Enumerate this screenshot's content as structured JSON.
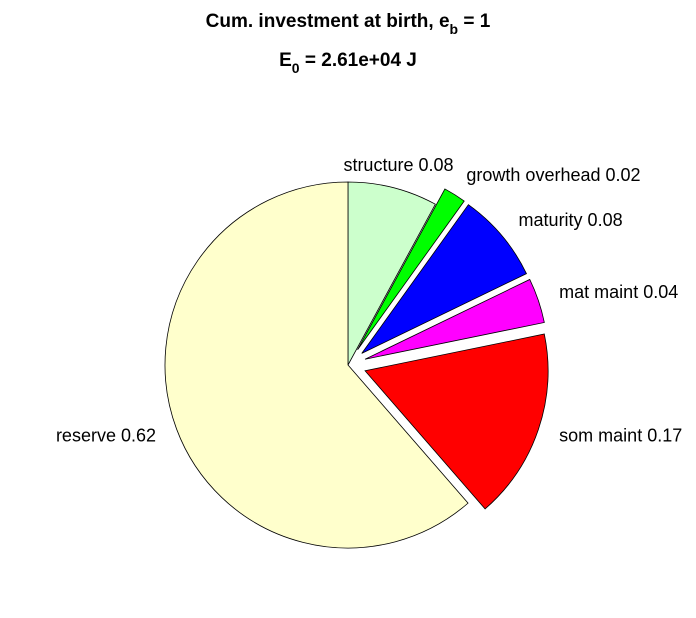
{
  "chart_data": {
    "type": "pie",
    "title": {
      "line1": [
        "Cum. investment at birth, e",
        "b",
        " = 1"
      ],
      "line2": [
        "E",
        "0",
        " = 2.61e+04 J"
      ]
    },
    "categories": [
      "structure 0.08",
      "growth overhead 0.02",
      "maturity 0.08",
      "mat maint 0.04",
      "som maint 0.17",
      "reserve 0.62"
    ],
    "values": [
      0.08,
      0.02,
      0.08,
      0.04,
      0.17,
      0.62
    ],
    "colors": [
      "#ccffcc",
      "#00ff00",
      "#0000ff",
      "#ff00ff",
      "#ff0000",
      "#ffffcc"
    ],
    "explode": [
      false,
      true,
      true,
      true,
      true,
      false
    ]
  }
}
